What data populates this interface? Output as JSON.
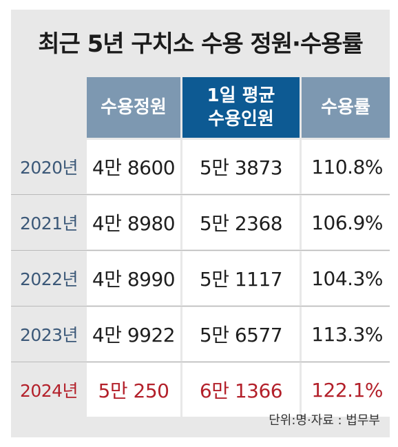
{
  "chart_data": {
    "type": "table",
    "title": "최근 5년 구치소 수용 정원·수용률",
    "columns": [
      "수용정원",
      "1일 평균\n수용인원",
      "수용률"
    ],
    "rows": [
      {
        "year": "2020년",
        "capacity": "4만 8600",
        "avg_daily": "5만 3873",
        "rate": "110.8%"
      },
      {
        "year": "2021년",
        "capacity": "4만 8980",
        "avg_daily": "5만 2368",
        "rate": "106.9%"
      },
      {
        "year": "2022년",
        "capacity": "4만 8990",
        "avg_daily": "5만 1117",
        "rate": "104.3%"
      },
      {
        "year": "2023년",
        "capacity": "4만 9922",
        "avg_daily": "5만 6577",
        "rate": "113.3%"
      },
      {
        "year": "2024년",
        "capacity": "5만 250",
        "avg_daily": "6만 1366",
        "rate": "122.1%"
      }
    ],
    "values": [
      {
        "year": 2020,
        "capacity": 48600,
        "avg_daily": 53873,
        "rate": 110.8
      },
      {
        "year": 2021,
        "capacity": 48980,
        "avg_daily": 52368,
        "rate": 106.9
      },
      {
        "year": 2022,
        "capacity": 48990,
        "avg_daily": 51117,
        "rate": 104.3
      },
      {
        "year": 2023,
        "capacity": 49922,
        "avg_daily": 56577,
        "rate": 113.3
      },
      {
        "year": 2024,
        "capacity": 50250,
        "avg_daily": 61366,
        "rate": 122.1
      }
    ],
    "source_note": "단위:명·자료 : 법무부"
  },
  "colors": {
    "header_light": "#7d98b1",
    "header_dark": "#0d5a93",
    "highlight": "#b3202a",
    "year_text": "#3b5878",
    "background": "#e8e8e8"
  }
}
